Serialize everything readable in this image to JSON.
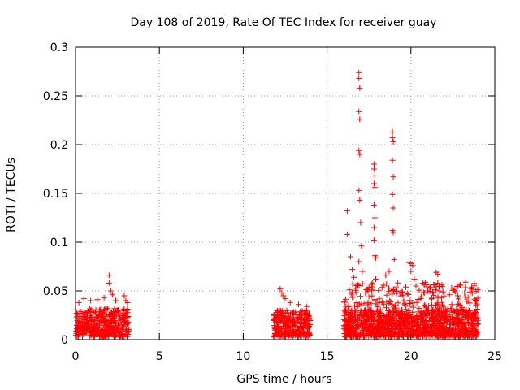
{
  "chart_data": {
    "type": "scatter",
    "title": "Day 108 of 2019, Rate Of TEC Index for receiver guay",
    "xlabel": "GPS time / hours",
    "ylabel": "ROTI / TECUs",
    "xlim": [
      0,
      25
    ],
    "ylim": [
      0,
      0.3
    ],
    "x_ticks": [
      0,
      5,
      10,
      15,
      20,
      25
    ],
    "x_tick_labels": [
      "0",
      "5",
      "10",
      "15",
      "20",
      "25"
    ],
    "y_ticks": [
      0,
      0.05,
      0.1,
      0.15,
      0.2,
      0.25,
      0.3
    ],
    "y_tick_labels": [
      "0",
      "0.05",
      "0.1",
      "0.15",
      "0.2",
      "0.25",
      "0.3"
    ],
    "grid": true,
    "marker": "plus",
    "color": "#ff0000",
    "dense_segments": [
      {
        "x_range": [
          0.0,
          3.2
        ],
        "y_range": [
          0.003,
          0.032
        ],
        "count": 420
      },
      {
        "x_range": [
          11.8,
          14.0
        ],
        "y_range": [
          0.003,
          0.03
        ],
        "count": 300
      },
      {
        "x_range": [
          16.0,
          24.0
        ],
        "y_range": [
          0.003,
          0.03
        ],
        "count": 1200
      },
      {
        "x_range": [
          16.0,
          24.0
        ],
        "y_range": [
          0.03,
          0.06
        ],
        "count": 200
      }
    ],
    "points": [
      [
        0.2,
        0.038
      ],
      [
        0.5,
        0.042
      ],
      [
        0.9,
        0.04
      ],
      [
        1.3,
        0.041
      ],
      [
        1.7,
        0.043
      ],
      [
        2.0,
        0.066
      ],
      [
        2.0,
        0.058
      ],
      [
        2.1,
        0.05
      ],
      [
        2.2,
        0.046
      ],
      [
        2.4,
        0.04
      ],
      [
        2.9,
        0.045
      ],
      [
        3.0,
        0.04
      ],
      [
        3.1,
        0.038
      ],
      [
        12.2,
        0.052
      ],
      [
        12.3,
        0.048
      ],
      [
        12.4,
        0.045
      ],
      [
        12.5,
        0.042
      ],
      [
        12.8,
        0.038
      ],
      [
        13.3,
        0.036
      ],
      [
        13.8,
        0.034
      ],
      [
        16.2,
        0.132
      ],
      [
        16.2,
        0.108
      ],
      [
        16.4,
        0.085
      ],
      [
        16.5,
        0.072
      ],
      [
        16.6,
        0.064
      ],
      [
        16.9,
        0.274
      ],
      [
        16.9,
        0.268
      ],
      [
        16.95,
        0.258
      ],
      [
        16.9,
        0.234
      ],
      [
        16.95,
        0.226
      ],
      [
        16.9,
        0.194
      ],
      [
        16.95,
        0.19
      ],
      [
        16.9,
        0.153
      ],
      [
        16.95,
        0.143
      ],
      [
        17.0,
        0.12
      ],
      [
        17.05,
        0.096
      ],
      [
        16.9,
        0.08
      ],
      [
        17.1,
        0.07
      ],
      [
        17.8,
        0.18
      ],
      [
        17.8,
        0.175
      ],
      [
        17.85,
        0.168
      ],
      [
        17.8,
        0.16
      ],
      [
        17.85,
        0.156
      ],
      [
        17.8,
        0.138
      ],
      [
        17.85,
        0.125
      ],
      [
        17.8,
        0.115
      ],
      [
        17.8,
        0.102
      ],
      [
        17.85,
        0.086
      ],
      [
        17.9,
        0.084
      ],
      [
        17.9,
        0.062
      ],
      [
        17.7,
        0.058
      ],
      [
        18.9,
        0.213
      ],
      [
        18.9,
        0.207
      ],
      [
        18.95,
        0.203
      ],
      [
        18.9,
        0.184
      ],
      [
        18.95,
        0.167
      ],
      [
        18.9,
        0.149
      ],
      [
        18.95,
        0.135
      ],
      [
        18.9,
        0.112
      ],
      [
        18.95,
        0.11
      ],
      [
        19.0,
        0.082
      ],
      [
        18.7,
        0.07
      ],
      [
        18.5,
        0.066
      ],
      [
        19.9,
        0.079
      ],
      [
        20.0,
        0.078
      ],
      [
        20.1,
        0.076
      ],
      [
        20.0,
        0.07
      ],
      [
        20.2,
        0.062
      ],
      [
        20.3,
        0.055
      ],
      [
        20.7,
        0.058
      ],
      [
        20.8,
        0.048
      ],
      [
        21.0,
        0.05
      ],
      [
        21.5,
        0.069
      ],
      [
        21.6,
        0.067
      ],
      [
        21.6,
        0.058
      ],
      [
        21.5,
        0.053
      ],
      [
        21.7,
        0.05
      ],
      [
        22.3,
        0.046
      ],
      [
        22.8,
        0.045
      ],
      [
        23.2,
        0.048
      ],
      [
        23.6,
        0.052
      ],
      [
        23.9,
        0.04
      ]
    ]
  }
}
